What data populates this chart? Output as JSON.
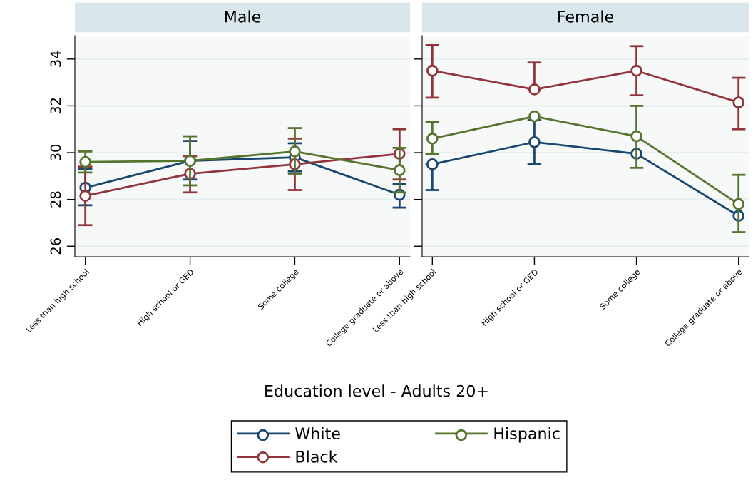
{
  "chart_data": [
    {
      "type": "line",
      "title": "Male",
      "xlabel": "Education level - Adults 20+",
      "categories": [
        "Less than high school",
        "High school or GED",
        "Some college",
        "College graduate or above"
      ],
      "ylim": [
        25.55,
        35.0
      ],
      "yticks": [
        26,
        28,
        30,
        32,
        34
      ],
      "grid": "y",
      "legend": "bottom",
      "marker": "circle",
      "line_style": "solid",
      "series": [
        {
          "name": "White",
          "color": "#1a476f",
          "values": [
            28.5,
            29.65,
            29.8,
            28.2
          ],
          "errors": [
            [
              27.75,
              29.3
            ],
            [
              28.85,
              30.5
            ],
            [
              29.2,
              30.4
            ],
            [
              27.65,
              28.65
            ]
          ]
        },
        {
          "name": "Black",
          "color": "#90353b",
          "values": [
            28.15,
            29.1,
            29.5,
            29.95
          ],
          "errors": [
            [
              26.9,
              29.4
            ],
            [
              28.3,
              29.85
            ],
            [
              28.4,
              30.6
            ],
            [
              28.85,
              31.0
            ]
          ]
        },
        {
          "name": "Hispanic",
          "color": "#55752f",
          "values": [
            29.6,
            29.65,
            30.05,
            29.25
          ],
          "errors": [
            [
              29.15,
              30.05
            ],
            [
              28.6,
              30.7
            ],
            [
              29.1,
              31.05
            ],
            [
              28.3,
              30.2
            ]
          ]
        }
      ]
    },
    {
      "type": "line",
      "title": "Female",
      "categories": [
        "Less than high school",
        "High school or GED",
        "Some college",
        "College graduate or above"
      ],
      "ylim": [
        25.55,
        35.0
      ],
      "yticks": [
        26,
        28,
        30,
        32,
        34
      ],
      "tick_labels": "x",
      "grid": "y",
      "marker": "circle",
      "line_style": "solid",
      "series": [
        {
          "color": "#1a476f",
          "values": [
            29.5,
            30.45,
            29.95,
            27.3
          ],
          "errors": [
            [
              28.4,
              29.5
            ],
            [
              29.5,
              31.4
            ],
            null,
            null
          ]
        },
        {
          "color": "#90353b",
          "values": [
            33.5,
            32.7,
            33.5,
            32.15
          ],
          "errors": [
            [
              32.35,
              34.6
            ],
            [
              32.7,
              33.85
            ],
            [
              32.45,
              34.55
            ],
            [
              31.0,
              33.2
            ]
          ]
        },
        {
          "color": "#55752f",
          "values": [
            30.6,
            31.55,
            30.7,
            27.8
          ],
          "errors": [
            [
              29.95,
              31.3
            ],
            null,
            [
              29.35,
              32.0
            ],
            [
              26.6,
              29.05
            ]
          ]
        }
      ]
    }
  ]
}
